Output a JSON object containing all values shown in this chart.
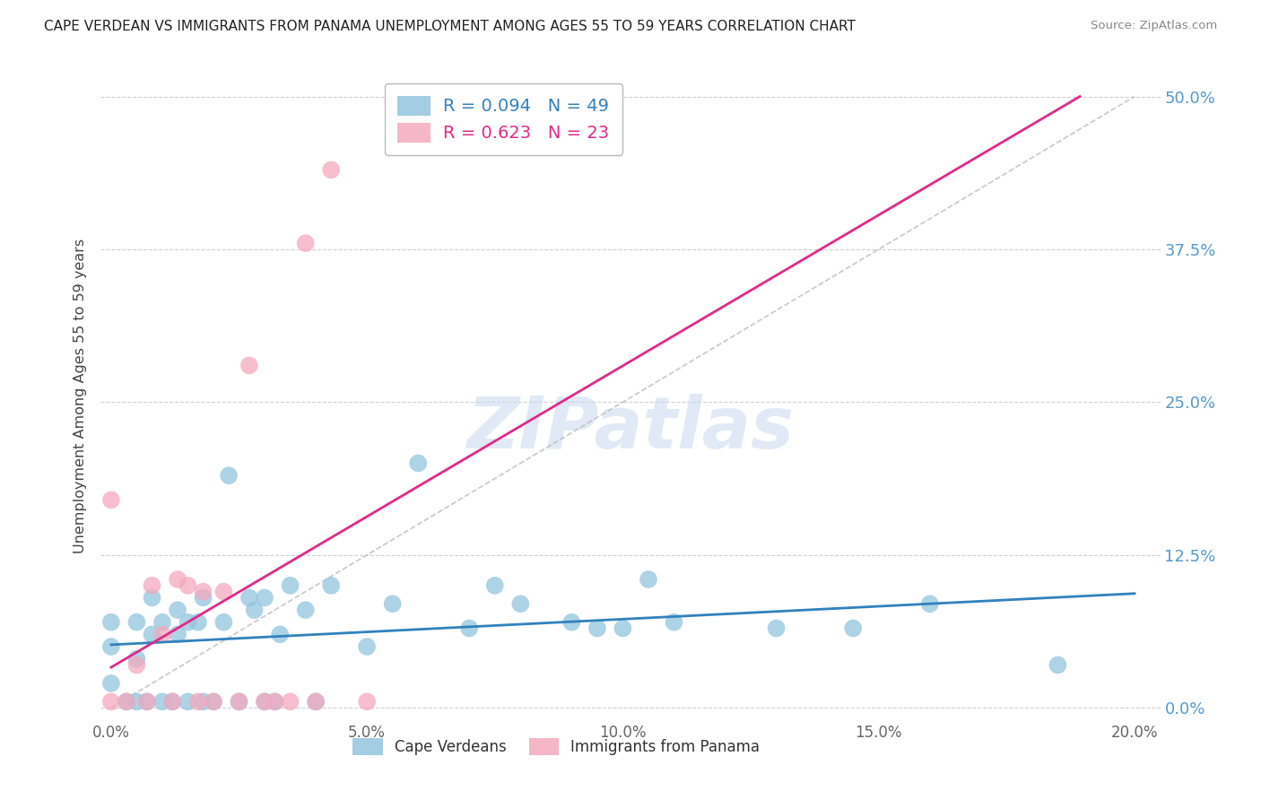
{
  "title": "CAPE VERDEAN VS IMMIGRANTS FROM PANAMA UNEMPLOYMENT AMONG AGES 55 TO 59 YEARS CORRELATION CHART",
  "source": "Source: ZipAtlas.com",
  "ylabel": "Unemployment Among Ages 55 to 59 years",
  "xlabel_ticks": [
    "0.0%",
    "5.0%",
    "10.0%",
    "15.0%",
    "20.0%"
  ],
  "xlabel_vals": [
    0.0,
    0.05,
    0.1,
    0.15,
    0.2
  ],
  "ylabel_ticks": [
    "0.0%",
    "12.5%",
    "25.0%",
    "37.5%",
    "50.0%"
  ],
  "ylabel_vals": [
    0.0,
    0.125,
    0.25,
    0.375,
    0.5
  ],
  "xlim": [
    -0.002,
    0.205
  ],
  "ylim": [
    -0.01,
    0.52
  ],
  "legend1_label": "Cape Verdeans",
  "legend2_label": "Immigrants from Panama",
  "blue_R": 0.094,
  "blue_N": 49,
  "pink_R": 0.623,
  "pink_N": 23,
  "blue_color": "#92c5de",
  "pink_color": "#f4a9be",
  "blue_line_color": "#3182bd",
  "pink_line_color": "#e2298a",
  "blue_points_x": [
    0.0,
    0.0,
    0.0,
    0.003,
    0.005,
    0.005,
    0.005,
    0.007,
    0.008,
    0.008,
    0.01,
    0.01,
    0.012,
    0.013,
    0.013,
    0.015,
    0.015,
    0.017,
    0.018,
    0.018,
    0.02,
    0.022,
    0.023,
    0.025,
    0.027,
    0.028,
    0.03,
    0.03,
    0.032,
    0.033,
    0.035,
    0.038,
    0.04,
    0.043,
    0.05,
    0.055,
    0.06,
    0.07,
    0.075,
    0.08,
    0.09,
    0.095,
    0.1,
    0.105,
    0.11,
    0.13,
    0.145,
    0.16,
    0.185
  ],
  "blue_points_y": [
    0.02,
    0.05,
    0.07,
    0.005,
    0.005,
    0.04,
    0.07,
    0.005,
    0.06,
    0.09,
    0.005,
    0.07,
    0.005,
    0.06,
    0.08,
    0.005,
    0.07,
    0.07,
    0.005,
    0.09,
    0.005,
    0.07,
    0.19,
    0.005,
    0.09,
    0.08,
    0.005,
    0.09,
    0.005,
    0.06,
    0.1,
    0.08,
    0.005,
    0.1,
    0.05,
    0.085,
    0.2,
    0.065,
    0.1,
    0.085,
    0.07,
    0.065,
    0.065,
    0.105,
    0.07,
    0.065,
    0.065,
    0.085,
    0.035
  ],
  "pink_points_x": [
    0.0,
    0.0,
    0.003,
    0.005,
    0.007,
    0.008,
    0.01,
    0.012,
    0.013,
    0.015,
    0.017,
    0.018,
    0.02,
    0.022,
    0.025,
    0.027,
    0.03,
    0.032,
    0.035,
    0.038,
    0.04,
    0.043,
    0.05
  ],
  "pink_points_y": [
    0.005,
    0.17,
    0.005,
    0.035,
    0.005,
    0.1,
    0.06,
    0.005,
    0.105,
    0.1,
    0.005,
    0.095,
    0.005,
    0.095,
    0.005,
    0.28,
    0.005,
    0.005,
    0.005,
    0.38,
    0.005,
    0.44,
    0.005
  ],
  "diag_line_x": [
    0.0,
    0.2
  ],
  "diag_line_y": [
    0.0,
    0.5
  ],
  "watermark_text": "ZIPatlas",
  "background_color": "#ffffff",
  "grid_color": "#d0d0d0",
  "tick_label_color": "#666666",
  "right_tick_color": "#5599cc"
}
